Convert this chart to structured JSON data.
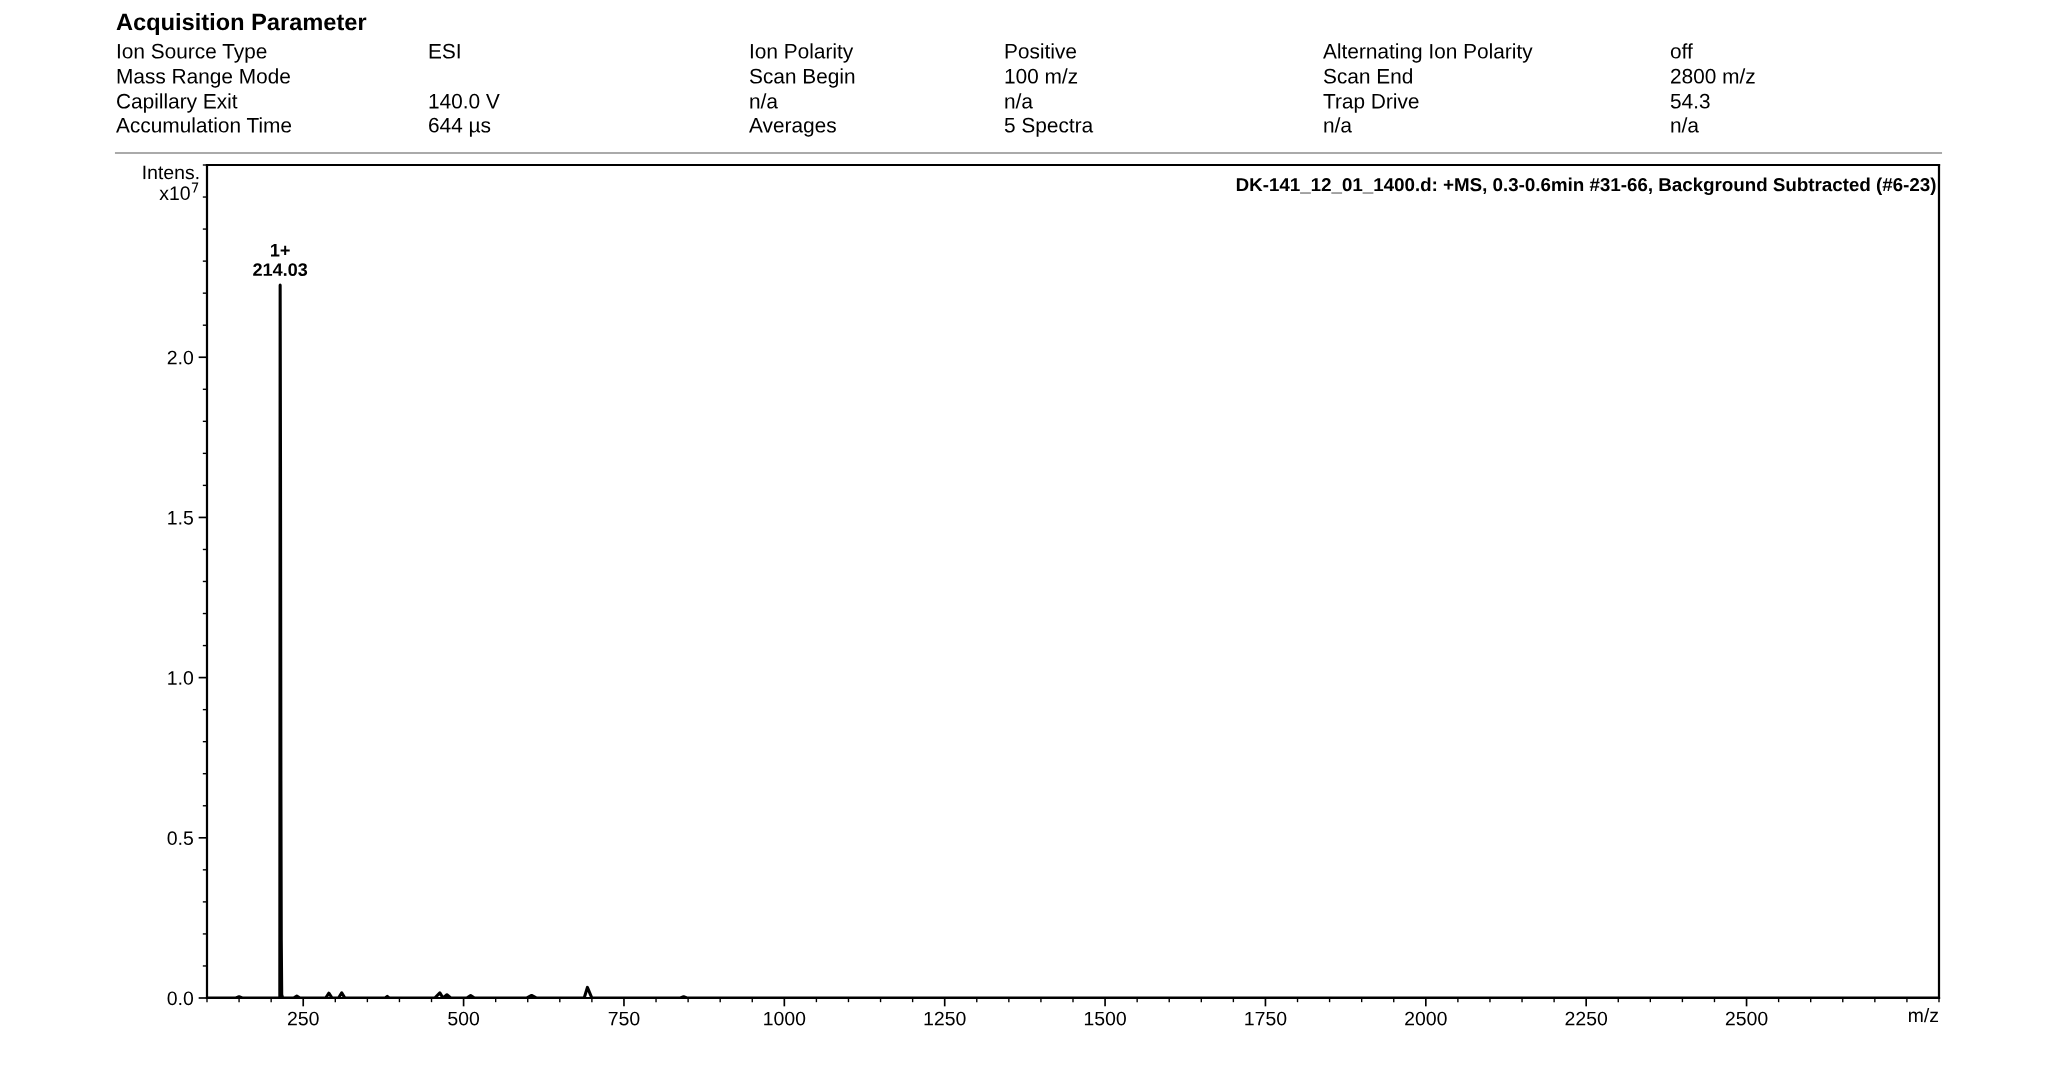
{
  "chart_data": {
    "type": "line",
    "title": "Acquisition Parameter",
    "xlabel": "m/z",
    "ylabel": "Intens.\nx10$^{7}$",
    "annotations": [
      "DK-141_12_01_1400.d: +MS, 0.3-0.6min #31-66, Background Subtracted (#6-23)",
      {
        "text": "1+\n214.03",
        "x": 214.03,
        "y": 2.225
      },
      "Ion Source Type\tESI\tIon Polarity\tPositive\tAlternating Ion Polarity\toff",
      "Mass Range Mode\t\tScan Begin\t100 m/z\tScan End\t2800 m/z",
      "Capillary Exit\t140.0 V\tn/a\tn/a\tTrap Drive\t54.3",
      "Accumulation Time\t644 µs\tAverages\t5 Spectra\tn/a\tn/a"
    ],
    "series": [
      {
        "color": "#000000",
        "x": [
          100,
          145,
          150,
          155,
          205,
          212,
          213.5,
          214.03,
          214.6,
          215.2,
          215.8,
          216.5,
          218,
          235,
          240,
          245,
          285,
          290,
          295,
          305,
          310,
          315,
          378,
          381,
          384,
          455,
          463,
          468,
          474,
          480,
          505,
          511,
          517,
          598,
          606,
          614,
          688,
          693,
          700,
          838,
          843,
          848,
          2800
        ],
        "values": [
          0,
          0,
          0.004,
          0,
          0,
          0,
          0,
          2.225,
          1.66,
          0.68,
          0.18,
          0.01,
          0,
          0,
          0.006,
          0,
          0,
          0.015,
          0,
          0,
          0.016,
          0,
          0,
          0.005,
          0,
          0,
          0.016,
          0,
          0.01,
          0,
          0,
          0.008,
          0,
          0,
          0.008,
          0,
          0,
          0.033,
          0,
          0,
          0.004,
          0,
          0
        ]
      }
    ],
    "xlim": [
      100,
      2800
    ],
    "xticks": [
      250,
      500,
      750,
      1000,
      1250,
      1500,
      1750,
      2000,
      2250,
      2500
    ],
    "ylim": [
      0,
      2.6
    ],
    "yticks": [
      {
        "value": 0,
        "label": "0.0"
      },
      {
        "value": 0.5,
        "label": "0.5"
      },
      {
        "value": 1.0,
        "label": "1.0"
      },
      {
        "value": 1.5,
        "label": "1.5"
      },
      {
        "value": 2.0,
        "label": "2.0"
      }
    ],
    "grid": false,
    "legend": false,
    "marker": "none",
    "line_style": "solid"
  }
}
